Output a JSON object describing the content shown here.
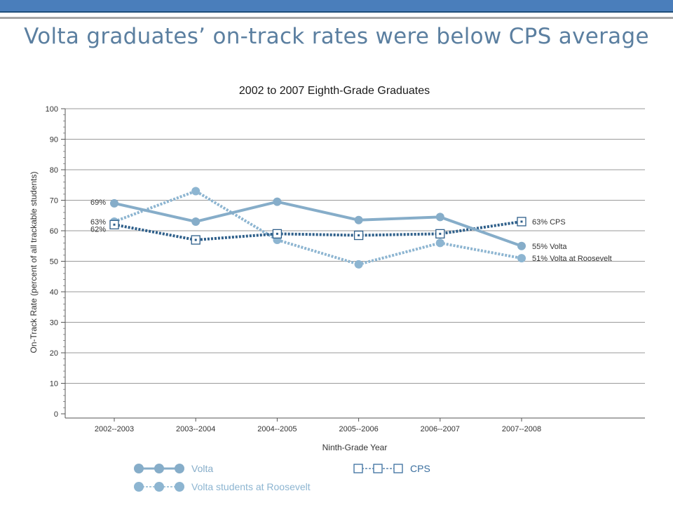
{
  "slide": {
    "title": "Volta graduates’ on-track rates were below CPS average"
  },
  "chart_data": {
    "type": "line",
    "title": "2002 to 2007 Eighth-Grade Graduates",
    "xlabel": "Ninth-Grade Year",
    "ylabel": "On-Track Rate (percent of all trackable students)",
    "ylim": [
      0,
      100
    ],
    "yticks": [
      0,
      10,
      20,
      30,
      40,
      50,
      60,
      70,
      80,
      90,
      100
    ],
    "grid": true,
    "legend_position": "bottom",
    "categories": [
      "2002--2003",
      "2003--2004",
      "2004--2005",
      "2005--2006",
      "2006--2007",
      "2007--2008"
    ],
    "series": [
      {
        "name": "Volta",
        "values": [
          69,
          63,
          69.5,
          63.5,
          64.5,
          55
        ],
        "color": "#86adc9",
        "style": "solid",
        "marker": "circle",
        "start_label": "69%",
        "end_label": "55% Volta"
      },
      {
        "name": "Volta students at Roosevelt",
        "values": [
          63,
          73,
          57,
          49,
          56,
          51
        ],
        "color": "#8db5d1",
        "style": "dotted",
        "marker": "circle",
        "start_label": "63%",
        "end_label": "51% Volta at Roosevelt"
      },
      {
        "name": "CPS",
        "values": [
          62,
          57,
          59,
          58.5,
          59,
          63
        ],
        "color": "#2e5f8a",
        "style": "dotted",
        "marker": "square",
        "start_label": "62%",
        "end_label": "63% CPS"
      }
    ]
  }
}
